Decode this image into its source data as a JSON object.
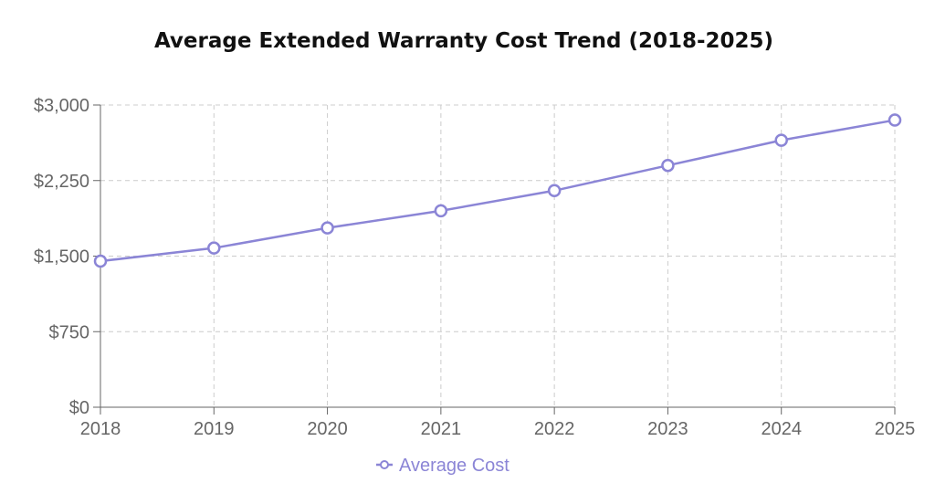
{
  "chart_data": {
    "type": "line",
    "title": "Average Extended Warranty Cost Trend (2018-2025)",
    "xlabel": "",
    "ylabel": "",
    "categories": [
      "2018",
      "2019",
      "2020",
      "2021",
      "2022",
      "2023",
      "2024",
      "2025"
    ],
    "series": [
      {
        "name": "Average Cost",
        "values": [
          1450,
          1580,
          1780,
          1950,
          2150,
          2400,
          2650,
          2850
        ],
        "color": "#8b85d6"
      }
    ],
    "ylim": [
      0,
      3000
    ],
    "y_ticks": [
      0,
      750,
      1500,
      2250,
      3000
    ],
    "y_tick_labels": [
      "$0",
      "$750",
      "$1,500",
      "$2,250",
      "$3,000"
    ],
    "grid": true,
    "legend_position": "bottom-center"
  }
}
